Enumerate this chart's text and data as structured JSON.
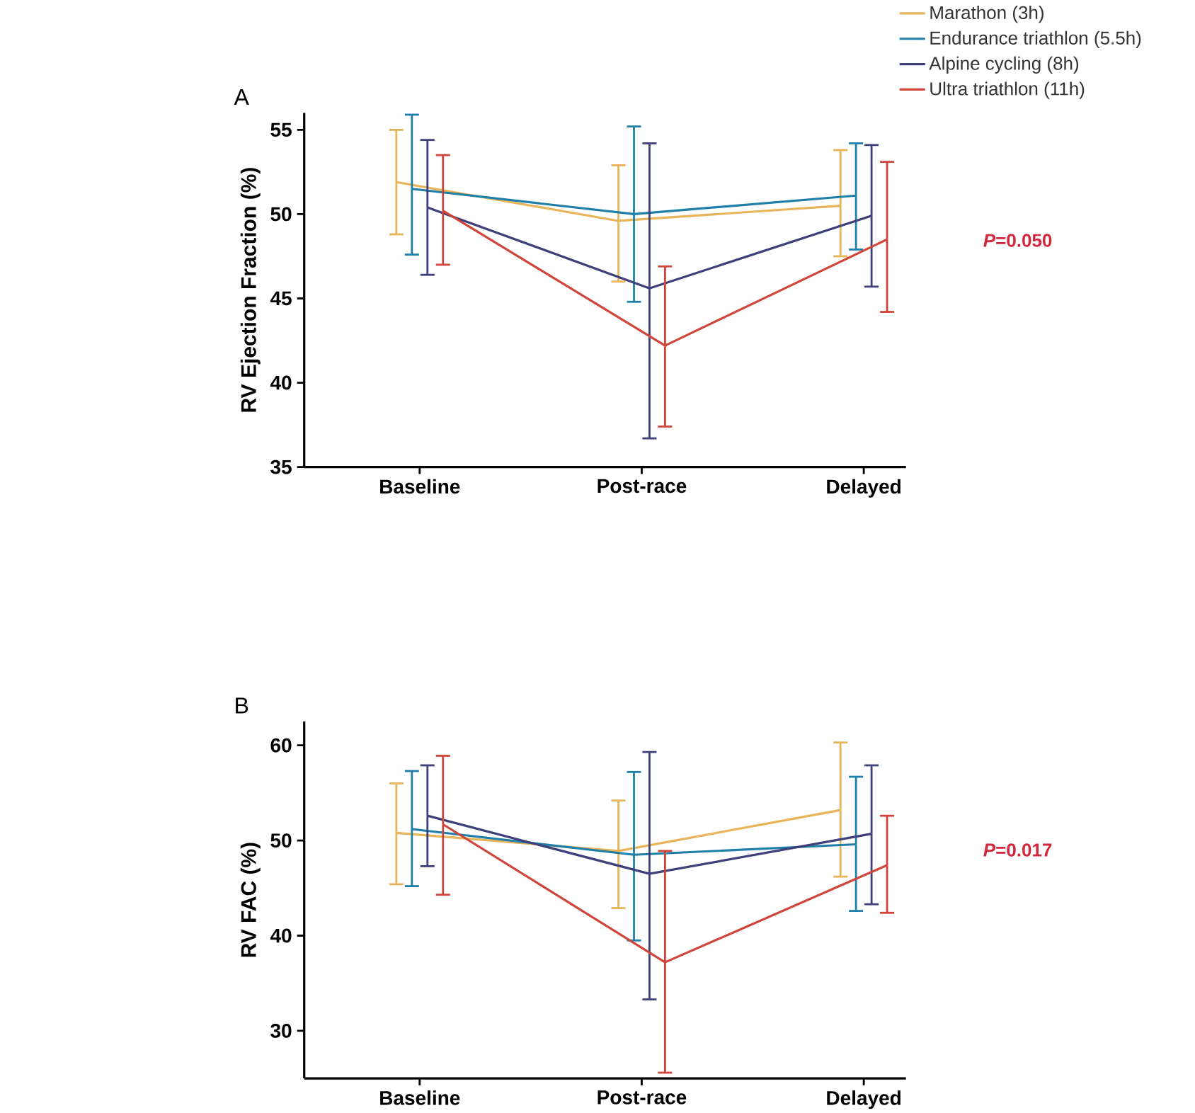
{
  "chart_data": [
    {
      "type": "line",
      "title": "A",
      "ylabel": "RV Ejection Fraction (%)",
      "categories": [
        "Baseline",
        "Post-race",
        "Delayed"
      ],
      "ylim": [
        35,
        56
      ],
      "yticks": [
        35,
        40,
        45,
        50,
        55
      ],
      "legend": "top right",
      "annotations": [
        "*P*=0.050"
      ],
      "series": [
        {
          "name": "Marathon (3h)",
          "color": "#e8b45a",
          "values": [
            51.9,
            49.6,
            50.5
          ],
          "errors": [
            [
              48.8,
              55.0
            ],
            [
              46.0,
              52.9
            ],
            [
              47.5,
              53.8
            ]
          ]
        },
        {
          "name": "Endurance triathlon (5.5h)",
          "color": "#1f7fa8",
          "values": [
            51.5,
            50.0,
            51.1
          ],
          "errors": [
            [
              47.6,
              55.9
            ],
            [
              44.8,
              55.2
            ],
            [
              47.9,
              54.2
            ]
          ]
        },
        {
          "name": "Alpine cycling (8h)",
          "color": "#3f3f7a",
          "values": [
            50.4,
            45.6,
            49.9
          ],
          "errors": [
            [
              46.4,
              54.4
            ],
            [
              36.7,
              54.2
            ],
            [
              45.7,
              54.1
            ]
          ]
        },
        {
          "name": "Ultra triathlon (11h)",
          "color": "#d0453a",
          "values": [
            50.2,
            42.2,
            48.5
          ],
          "errors": [
            [
              47.0,
              53.5
            ],
            [
              37.4,
              46.9
            ],
            [
              44.2,
              53.1
            ]
          ]
        }
      ]
    },
    {
      "type": "line",
      "title": "B",
      "ylabel": "RV FAC (%)",
      "categories": [
        "Baseline",
        "Post-race",
        "Delayed"
      ],
      "ylim": [
        25,
        62.5
      ],
      "yticks": [
        30,
        40,
        50,
        60
      ],
      "annotations": [
        "*P*=0.017"
      ],
      "series": [
        {
          "color": "#e8b45a",
          "values": [
            50.8,
            48.9,
            53.2
          ],
          "errors": [
            [
              45.4,
              56.0
            ],
            [
              42.9,
              54.2
            ],
            [
              46.2,
              60.3
            ]
          ]
        },
        {
          "color": "#1f7fa8",
          "values": [
            51.2,
            48.5,
            49.6
          ],
          "errors": [
            [
              45.2,
              57.3
            ],
            [
              39.5,
              57.2
            ],
            [
              42.6,
              56.7
            ]
          ]
        },
        {
          "color": "#3f3f7a",
          "values": [
            52.6,
            46.5,
            50.7
          ],
          "errors": [
            [
              47.3,
              57.9
            ],
            [
              33.3,
              59.3
            ],
            [
              43.3,
              57.9
            ]
          ]
        },
        {
          "color": "#d0453a",
          "values": [
            51.7,
            37.2,
            47.4
          ],
          "errors": [
            [
              44.3,
              58.9
            ],
            [
              25.6,
              48.9
            ],
            [
              42.4,
              52.6
            ]
          ]
        }
      ]
    }
  ]
}
